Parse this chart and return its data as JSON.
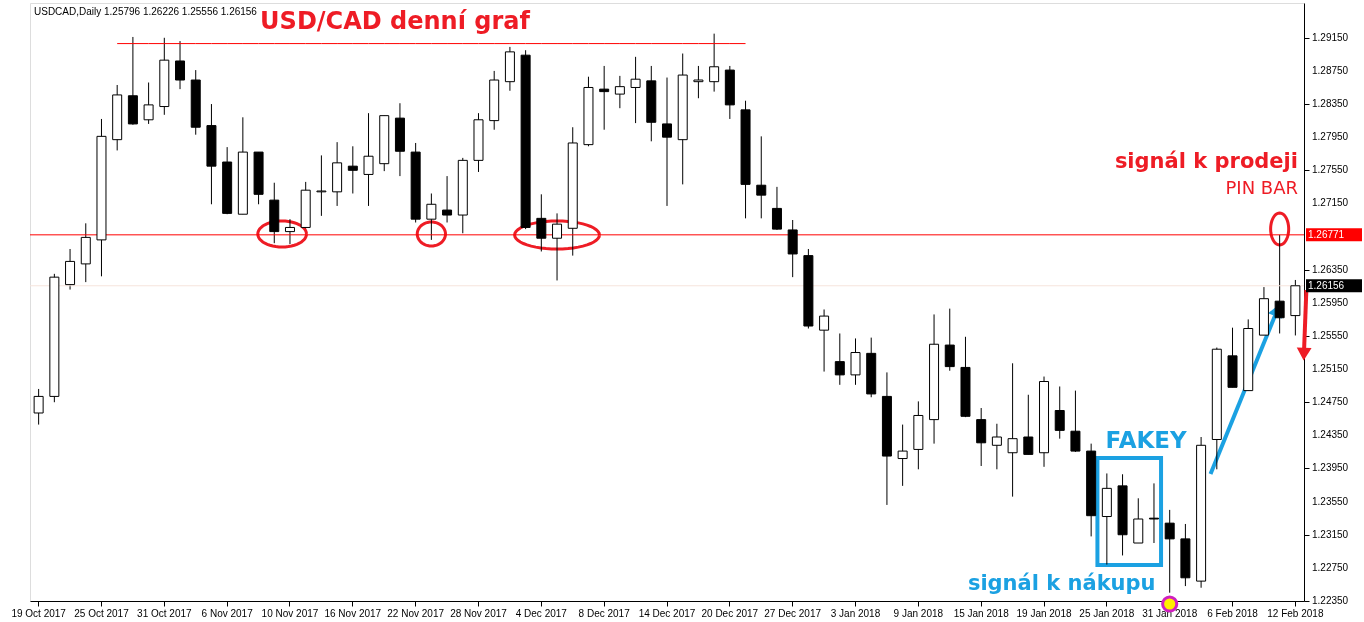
{
  "chart_data": {
    "type": "candlestick",
    "title": "USD/CAD denní graf",
    "subtitle": "USDCAD,Daily  1.25796 1.26226 1.25556 1.26156",
    "categories": [
      "19 Oct 2017",
      null,
      null,
      null,
      "25 Oct 2017",
      null,
      null,
      null,
      "31 Oct 2017",
      null,
      null,
      null,
      "6 Nov 2017",
      null,
      null,
      null,
      "10 Nov 2017",
      null,
      null,
      null,
      "16 Nov 2017",
      null,
      null,
      null,
      "22 Nov 2017",
      null,
      null,
      null,
      "28 Nov 2017",
      null,
      null,
      null,
      "4 Dec 2017",
      null,
      null,
      null,
      "8 Dec 2017",
      null,
      null,
      null,
      "14 Dec 2017",
      null,
      null,
      null,
      "20 Dec 2017",
      null,
      null,
      null,
      "27 Dec 2017",
      null,
      null,
      null,
      "3 Jan 2018",
      null,
      null,
      null,
      "9 Jan 2018",
      null,
      null,
      null,
      "15 Jan 2018",
      null,
      null,
      null,
      "19 Jan 2018",
      null,
      null,
      null,
      "25 Jan 2018",
      null,
      null,
      null,
      "31 Jan 2018",
      null,
      null,
      null,
      "6 Feb 2018",
      null,
      null,
      null,
      "12 Feb 2018"
    ],
    "ohlc": [
      [
        1.2462,
        1.2491,
        1.2448,
        1.2482
      ],
      [
        1.2482,
        1.263,
        1.2475,
        1.2626
      ],
      [
        1.2617,
        1.266,
        1.2611,
        1.2645
      ],
      [
        1.2642,
        1.2691,
        1.262,
        1.2674
      ],
      [
        1.2671,
        1.2817,
        1.2627,
        1.2796
      ],
      [
        1.2792,
        1.2858,
        1.2779,
        1.2846
      ],
      [
        1.2845,
        1.2916,
        1.281,
        1.2811
      ],
      [
        1.2816,
        1.2861,
        1.2811,
        1.2834
      ],
      [
        1.2832,
        1.2915,
        1.2822,
        1.2888
      ],
      [
        1.2887,
        1.2911,
        1.2853,
        1.2864
      ],
      [
        1.2864,
        1.2876,
        1.2798,
        1.2807
      ],
      [
        1.2809,
        1.2835,
        1.2714,
        1.276
      ],
      [
        1.2765,
        1.2783,
        1.2702,
        1.2703
      ],
      [
        1.2702,
        1.2819,
        1.2702,
        1.2777
      ],
      [
        1.2777,
        1.2777,
        1.2714,
        1.2726
      ],
      [
        1.2719,
        1.274,
        1.2667,
        1.2681
      ],
      [
        1.2681,
        1.2696,
        1.2666,
        1.2686
      ],
      [
        1.2686,
        1.2741,
        1.2685,
        1.2731
      ],
      [
        1.2729,
        1.2773,
        1.27,
        1.273
      ],
      [
        1.2729,
        1.2789,
        1.2712,
        1.2764
      ],
      [
        1.276,
        1.2784,
        1.2727,
        1.2755
      ],
      [
        1.275,
        1.2824,
        1.2712,
        1.2772
      ],
      [
        1.2763,
        1.2821,
        1.2754,
        1.2821
      ],
      [
        1.2818,
        1.2836,
        1.2748,
        1.2778
      ],
      [
        1.2777,
        1.2788,
        1.2692,
        1.2696
      ],
      [
        1.2696,
        1.2727,
        1.2671,
        1.2714
      ],
      [
        1.2707,
        1.2748,
        1.2692,
        1.2701
      ],
      [
        1.2701,
        1.277,
        1.2679,
        1.2767
      ],
      [
        1.2767,
        1.2824,
        1.2753,
        1.2816
      ],
      [
        1.2815,
        1.2875,
        1.2804,
        1.2864
      ],
      [
        1.2862,
        1.2904,
        1.2851,
        1.2898
      ],
      [
        1.2894,
        1.29,
        1.2684,
        1.2686
      ],
      [
        1.2697,
        1.2726,
        1.2657,
        1.2673
      ],
      [
        1.2673,
        1.2703,
        1.2622,
        1.269
      ],
      [
        1.2685,
        1.2807,
        1.2652,
        1.2788
      ],
      [
        1.2786,
        1.2868,
        1.2784,
        1.2855
      ],
      [
        1.2853,
        1.2881,
        1.2804,
        1.285
      ],
      [
        1.2847,
        1.2869,
        1.283,
        1.2856
      ],
      [
        1.2855,
        1.2892,
        1.2812,
        1.2865
      ],
      [
        1.2863,
        1.2881,
        1.279,
        1.2813
      ],
      [
        1.2811,
        1.2867,
        1.2712,
        1.2795
      ],
      [
        1.2792,
        1.2896,
        1.2738,
        1.287
      ],
      [
        1.2862,
        1.2881,
        1.2842,
        1.2864
      ],
      [
        1.2862,
        1.292,
        1.285,
        1.288
      ],
      [
        1.2876,
        1.2881,
        1.2817,
        1.2834
      ],
      [
        1.2828,
        1.2839,
        1.2697,
        1.2738
      ],
      [
        1.2737,
        1.2796,
        1.2697,
        1.2725
      ],
      [
        1.2709,
        1.2735,
        1.2683,
        1.2684
      ],
      [
        1.2683,
        1.2695,
        1.2626,
        1.2654
      ],
      [
        1.2652,
        1.266,
        1.2564,
        1.2567
      ],
      [
        1.2562,
        1.2587,
        1.2512,
        1.2579
      ],
      [
        1.2524,
        1.2558,
        1.2496,
        1.2508
      ],
      [
        1.2508,
        1.2552,
        1.2496,
        1.2535
      ],
      [
        1.2534,
        1.2553,
        1.2481,
        1.2485
      ],
      [
        1.2482,
        1.2511,
        1.2351,
        1.241
      ],
      [
        1.2407,
        1.2448,
        1.2374,
        1.2416
      ],
      [
        1.2418,
        1.2476,
        1.2394,
        1.2459
      ],
      [
        1.2454,
        1.2581,
        1.2425,
        1.2545
      ],
      [
        1.2544,
        1.2588,
        1.2513,
        1.2518
      ],
      [
        1.2517,
        1.2554,
        1.2457,
        1.2458
      ],
      [
        1.2454,
        1.2468,
        1.2398,
        1.2426
      ],
      [
        1.2423,
        1.2449,
        1.2394,
        1.2433
      ],
      [
        1.2414,
        1.2522,
        1.2361,
        1.2431
      ],
      [
        1.2433,
        1.2484,
        1.2412,
        1.2412
      ],
      [
        1.2414,
        1.2506,
        1.2397,
        1.25
      ],
      [
        1.2465,
        1.2494,
        1.2431,
        1.2441
      ],
      [
        1.244,
        1.2489,
        1.2415,
        1.2416
      ],
      [
        1.2416,
        1.2425,
        1.2313,
        1.2338
      ],
      [
        1.2337,
        1.2389,
        1.2279,
        1.2371
      ],
      [
        1.2374,
        1.2388,
        1.229,
        1.2315
      ],
      [
        1.2305,
        1.2359,
        1.2305,
        1.2334
      ],
      [
        1.2335,
        1.2377,
        1.2305,
        1.2334
      ],
      [
        1.2329,
        1.2345,
        1.2245,
        1.231
      ],
      [
        1.231,
        1.2328,
        1.2253,
        1.2263
      ],
      [
        1.2259,
        1.2433,
        1.2251,
        1.2423
      ],
      [
        1.243,
        1.2541,
        1.2394,
        1.2539
      ],
      [
        1.2531,
        1.2565,
        1.2493,
        1.2493
      ],
      [
        1.2489,
        1.2575,
        1.2489,
        1.2564
      ],
      [
        1.2556,
        1.2614,
        1.2556,
        1.26
      ],
      [
        1.2597,
        1.26771,
        1.2558,
        1.2577
      ],
      [
        1.25796,
        1.26226,
        1.25556,
        1.26156
      ]
    ],
    "series": [
      {
        "type": "line",
        "color": "#ff0000",
        "values": [
          null,
          null,
          null,
          null,
          null,
          1.2908,
          1.2908,
          1.2908,
          1.2908,
          1.2908,
          1.2908,
          1.2908,
          1.2908,
          1.2908,
          1.2908,
          1.2908,
          1.2908,
          1.2908,
          1.2908,
          1.2908,
          1.2908,
          1.2908,
          1.2908,
          1.2908,
          1.2908,
          1.2908,
          1.2908,
          1.2908,
          1.2908,
          1.2908,
          1.2908,
          1.2908,
          1.2908,
          1.2908,
          1.2908,
          1.2908,
          1.2908,
          1.2908,
          1.2908,
          1.2908,
          1.2908,
          1.2908,
          1.2908,
          1.2908,
          1.2908,
          1.2908,
          null,
          null,
          null,
          null,
          null,
          null,
          null,
          null,
          null,
          null,
          null,
          null,
          null,
          null,
          null,
          null,
          null,
          null,
          null,
          null,
          null,
          null,
          null,
          null,
          null,
          null,
          null,
          null,
          null,
          null,
          null,
          null,
          null,
          null,
          null
        ]
      }
    ],
    "ylim": [
      1.2235,
      1.2957
    ],
    "yticks": [
      {
        "value": 1.2915,
        "label": "1.29150"
      },
      {
        "value": 1.2875,
        "label": "1.28750"
      },
      {
        "value": 1.2835,
        "label": "1.28350"
      },
      {
        "value": 1.2795,
        "label": "1.27950"
      },
      {
        "value": 1.2755,
        "label": "1.27550"
      },
      {
        "value": 1.2715,
        "label": "1.27150"
      },
      {
        "value": 1.2635,
        "label": "1.26350"
      },
      {
        "value": 1.2595,
        "label": "1.25950"
      },
      {
        "value": 1.2555,
        "label": "1.25550"
      },
      {
        "value": 1.2515,
        "label": "1.25150"
      },
      {
        "value": 1.2475,
        "label": "1.24750"
      },
      {
        "value": 1.2435,
        "label": "1.24350"
      },
      {
        "value": 1.2395,
        "label": "1.23950"
      },
      {
        "value": 1.2355,
        "label": "1.23550"
      },
      {
        "value": 1.2315,
        "label": "1.23150"
      },
      {
        "value": 1.2275,
        "label": "1.22750"
      },
      {
        "value": 1.2235,
        "label": "1.22350"
      }
    ],
    "ref_lines": [
      {
        "axis": "y",
        "value": 1.26771,
        "label": "1.26771",
        "color": "#ff0000"
      },
      {
        "axis": "y",
        "value": 1.26156,
        "label": "1.26156",
        "color": "#f6e4dc"
      }
    ],
    "annotations": [
      "signál k prodeji",
      "PIN BAR",
      "FAKEY",
      "signál k nákupu"
    ],
    "grid": false
  }
}
